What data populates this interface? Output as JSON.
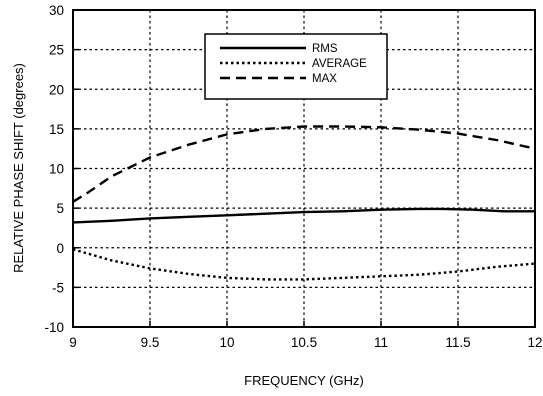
{
  "chart_data": {
    "type": "line",
    "xlabel": "FREQUENCY (GHz)",
    "ylabel": "RELATIVE PHASE SHIFT  (degrees)",
    "xlim": [
      9,
      12
    ],
    "ylim": [
      -10,
      30
    ],
    "xticks": [
      9,
      9.5,
      10,
      10.5,
      11,
      11.5,
      12
    ],
    "xtick_labels": [
      "9",
      "9.5",
      "10",
      "10.5",
      "11",
      "11.5",
      "12"
    ],
    "yticks": [
      -10,
      -5,
      0,
      5,
      10,
      15,
      20,
      25,
      30
    ],
    "ytick_labels": [
      "-10",
      "-5",
      "0",
      "5",
      "10",
      "15",
      "20",
      "25",
      "30"
    ],
    "grid": true,
    "legend_position": "top-center",
    "series": [
      {
        "name": "RMS",
        "line_style": "solid",
        "x": [
          9,
          9.25,
          9.5,
          9.75,
          10,
          10.25,
          10.5,
          10.75,
          11,
          11.25,
          11.4,
          11.6,
          11.8,
          12
        ],
        "y": [
          3.2,
          3.4,
          3.7,
          3.9,
          4.1,
          4.3,
          4.5,
          4.6,
          4.8,
          4.9,
          4.9,
          4.8,
          4.6,
          4.6
        ]
      },
      {
        "name": "AVERAGE",
        "line_style": "dotted",
        "x": [
          9,
          9.25,
          9.5,
          9.75,
          10,
          10.25,
          10.5,
          10.75,
          11,
          11.25,
          11.5,
          11.75,
          12
        ],
        "y": [
          -0.2,
          -1.6,
          -2.6,
          -3.3,
          -3.8,
          -4.0,
          -4.0,
          -3.8,
          -3.6,
          -3.4,
          -3.0,
          -2.4,
          -2.0
        ]
      },
      {
        "name": "MAX",
        "line_style": "dashed",
        "x": [
          9,
          9.1,
          9.25,
          9.5,
          9.75,
          10,
          10.25,
          10.5,
          10.75,
          11,
          11.25,
          11.5,
          11.75,
          12
        ],
        "y": [
          5.8,
          7.0,
          9.0,
          11.4,
          13.0,
          14.3,
          15.0,
          15.3,
          15.3,
          15.2,
          14.9,
          14.4,
          13.6,
          12.5
        ]
      }
    ]
  },
  "colors": {
    "line": "#000000",
    "background": "#ffffff"
  }
}
